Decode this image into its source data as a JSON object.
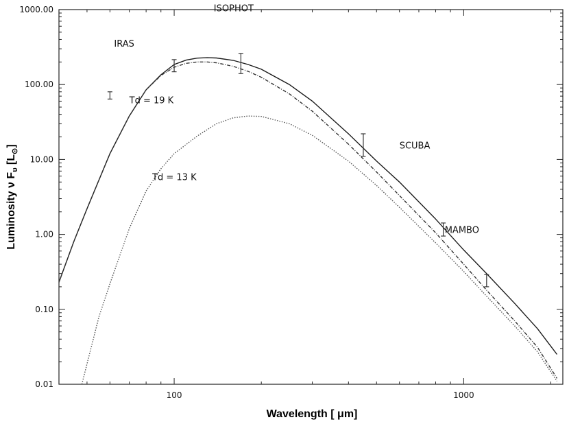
{
  "chart_data": {
    "type": "line",
    "xlabel": "Wavelength [ μm]",
    "ylabel": "Luminosity ν F",
    "ylabel_sub": "υ",
    "ylabel_unit_open": " [L",
    "ylabel_unit_sub": "⊙",
    "ylabel_unit_close": "]",
    "x_scale": "log",
    "y_scale": "log",
    "xlim": [
      40,
      2200
    ],
    "ylim": [
      0.01,
      1000
    ],
    "x_tick_labels": [
      {
        "value": 100,
        "label": "100"
      },
      {
        "value": 1000,
        "label": "1000"
      }
    ],
    "y_tick_labels": [
      {
        "value": 1000,
        "label": "1000.00"
      },
      {
        "value": 100,
        "label": "100.00"
      },
      {
        "value": 10,
        "label": "10.00"
      },
      {
        "value": 1,
        "label": "1.00"
      },
      {
        "value": 0.1,
        "label": "0.10"
      },
      {
        "value": 0.01,
        "label": "0.01"
      }
    ],
    "series": [
      {
        "style": "solid",
        "color": "#1a1a1a",
        "x": [
          40,
          45,
          50,
          60,
          70,
          80,
          90,
          100,
          110,
          120,
          130,
          140,
          160,
          180,
          200,
          250,
          300,
          400,
          500,
          600,
          800,
          1000,
          1200,
          1500,
          1800,
          2100
        ],
        "y": [
          0.23,
          0.8,
          2.2,
          12,
          38,
          85,
          135,
          185,
          212,
          225,
          228,
          226,
          210,
          185,
          160,
          100,
          60,
          22,
          9.5,
          5,
          1.6,
          0.62,
          0.3,
          0.12,
          0.055,
          0.025
        ]
      },
      {
        "style": "dash-dot",
        "color": "#333333",
        "x": [
          40,
          45,
          50,
          60,
          70,
          80,
          90,
          100,
          110,
          120,
          130,
          140,
          160,
          180,
          200,
          250,
          300,
          400,
          500,
          600,
          800,
          1000,
          1200,
          1500,
          1800,
          2100
        ],
        "y": [
          0.23,
          0.8,
          2.2,
          12,
          38,
          85,
          132,
          170,
          192,
          200,
          200,
          195,
          175,
          150,
          125,
          75,
          44,
          16,
          6.8,
          3.3,
          1.05,
          0.4,
          0.18,
          0.07,
          0.031,
          0.012
        ]
      },
      {
        "style": "dotted",
        "color": "#555555",
        "x": [
          48,
          55,
          60,
          70,
          80,
          90,
          100,
          120,
          140,
          160,
          180,
          200,
          250,
          300,
          400,
          500,
          600,
          800,
          1000,
          1200,
          1500,
          1800,
          2100
        ],
        "y": [
          0.01,
          0.08,
          0.22,
          1.2,
          3.8,
          7.5,
          12,
          20.5,
          30,
          36,
          38,
          37.5,
          30,
          21,
          9.5,
          4.5,
          2.3,
          0.77,
          0.32,
          0.15,
          0.06,
          0.027,
          0.011
        ]
      }
    ],
    "error_bars": [
      {
        "x": 60,
        "y": 72,
        "low": 64,
        "high": 80
      },
      {
        "x": 100,
        "y": 178,
        "low": 148,
        "high": 215
      },
      {
        "x": 170,
        "y": 190,
        "low": 140,
        "high": 260
      },
      {
        "x": 450,
        "y": 16,
        "low": 11,
        "high": 22
      },
      {
        "x": 850,
        "y": 1.15,
        "low": 0.95,
        "high": 1.42
      },
      {
        "x": 1200,
        "y": 0.24,
        "low": 0.2,
        "high": 0.29
      }
    ],
    "annotations": [
      {
        "text": "IRAS",
        "x": 62,
        "y": 320
      },
      {
        "text": "ISOPHOT",
        "x": 137,
        "y": 950
      },
      {
        "text": "Td = 19 K",
        "x": 70,
        "y": 56
      },
      {
        "text": "SCUBA",
        "x": 600,
        "y": 14
      },
      {
        "text": "Td = 13 K",
        "x": 84,
        "y": 5.3
      },
      {
        "text": "MAMBO",
        "x": 860,
        "y": 1.05
      }
    ]
  }
}
